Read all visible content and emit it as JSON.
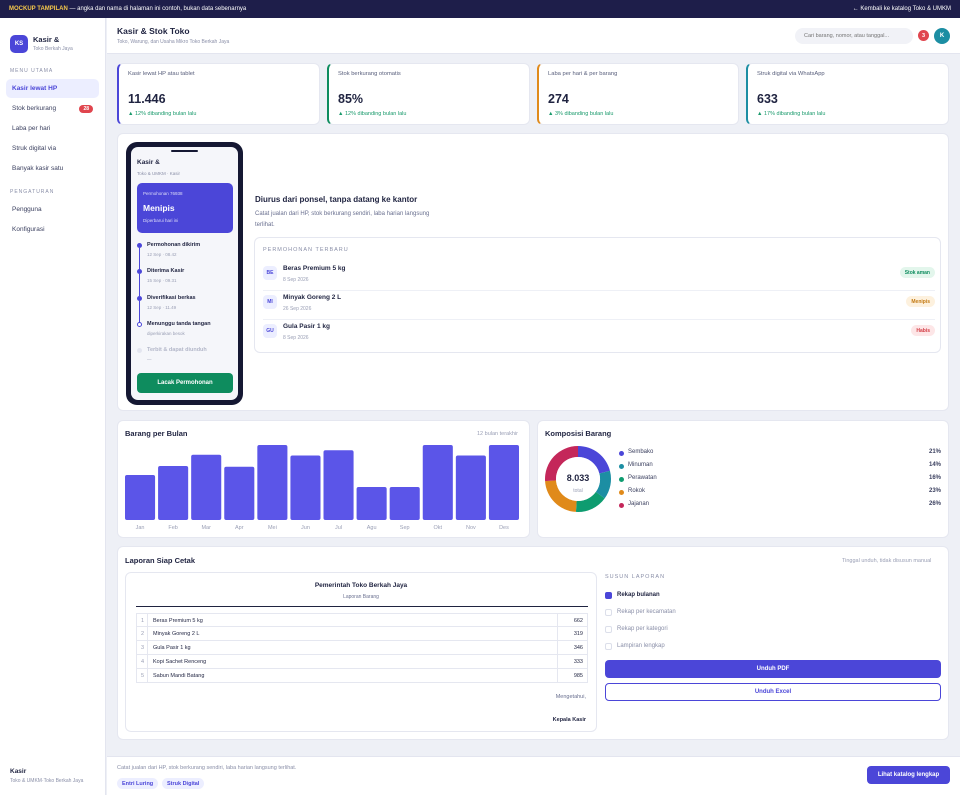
{
  "banner": {
    "tag": "MOCKUP TAMPILAN",
    "text": " — angka dan nama di halaman ini contoh, bukan data sebenarnya",
    "back_link": "← Kembali ke katalog Toko & UMKM"
  },
  "sidebar": {
    "logo": "KS",
    "title": "Kasir &",
    "subtitle": "Toko Berkah Jaya",
    "menu_heading": "MENU UTAMA",
    "items": [
      {
        "label": "Kasir lewat HP",
        "active": true
      },
      {
        "label": "Stok berkurang",
        "badge": "28"
      },
      {
        "label": "Laba per hari"
      },
      {
        "label": "Struk digital via"
      },
      {
        "label": "Banyak kasir satu"
      }
    ],
    "settings_heading": "PENGATURAN",
    "settings_items": [
      {
        "label": "Pengguna"
      },
      {
        "label": "Konfigurasi"
      }
    ],
    "footer_title": "Kasir",
    "footer_sub": "Toko & UMKM·Toko Berkah Jaya"
  },
  "header": {
    "title": "Kasir & Stok Toko",
    "subtitle": "Toko, Warung, dan Usaha Mikro Toko Berkah Jaya",
    "search_placeholder": "Cari barang, nomor, atau tanggal...",
    "notif_count": "3",
    "avatar": "K"
  },
  "stats": [
    {
      "label": "Kasir lewat HP atau tablet",
      "value": "11.446",
      "change": "▲ 12% dibanding bulan lalu",
      "color": "#4b46d8"
    },
    {
      "label": "Stok berkurang otomatis",
      "value": "85%",
      "change": "▲ 12% dibanding bulan lalu",
      "color": "#0e8c5e"
    },
    {
      "label": "Laba per hari & per barang",
      "value": "274",
      "change": "▲ 3% dibanding bulan lalu",
      "color": "#e08a1a"
    },
    {
      "label": "Struk digital via WhatsApp",
      "value": "633",
      "change": "▲ 17% dibanding bulan lalu",
      "color": "#1c8ea3"
    }
  ],
  "phone": {
    "title": "Kasir &",
    "subtitle": "Toko & UMKM · Kasir",
    "hero_id": "Permohonan 76938",
    "hero_status": "Menipis",
    "hero_note": "Diperbarui hari ini",
    "timeline": [
      {
        "label": "Permohonan dikirim",
        "time": "12 Sep · 08.42",
        "state": "done"
      },
      {
        "label": "Diterima Kasir",
        "time": "15 Sep · 09.31",
        "state": "done"
      },
      {
        "label": "Diverifikasi berkas",
        "time": "12 Sep · 11.49",
        "state": "done"
      },
      {
        "label": "Menunggu tanda tangan",
        "time": "diperkirakan besok",
        "state": "current"
      },
      {
        "label": "Terbit & dapat diunduh",
        "time": "—",
        "state": "pending"
      }
    ],
    "button": "Lacak Permohonan"
  },
  "intro": {
    "title": "Diurus dari ponsel, tanpa datang ke kantor",
    "text": "Catat jualan dari HP, stok berkurang sendiri, laba harian langsung terlihat."
  },
  "requests": {
    "heading": "PERMOHONAN TERBARU",
    "rows": [
      {
        "initials": "BE",
        "name": "Beras Premium 5 kg",
        "date": "8 Sep 2026",
        "status": "Stok aman",
        "bg": "#e3f6ec",
        "fg": "#0e8c5e"
      },
      {
        "initials": "MI",
        "name": "Minyak Goreng 2 L",
        "date": "26 Sep 2026",
        "status": "Menipis",
        "bg": "#fdf1de",
        "fg": "#c47a12"
      },
      {
        "initials": "GU",
        "name": "Gula Pasir 1 kg",
        "date": "8 Sep 2026",
        "status": "Habis",
        "bg": "#fde6e7",
        "fg": "#d33b44"
      }
    ]
  },
  "bar_section": {
    "title": "Barang per Bulan",
    "note": "12 bulan terakhir"
  },
  "chart_data": [
    {
      "type": "bar",
      "title": "Barang per Bulan",
      "categories": [
        "Jan",
        "Feb",
        "Mar",
        "Apr",
        "Mei",
        "Jun",
        "Jul",
        "Agu",
        "Sep",
        "Okt",
        "Nov",
        "Des"
      ],
      "values": [
        60,
        72,
        87,
        71,
        100,
        86,
        93,
        44,
        44,
        100,
        86,
        100
      ],
      "ylim": [
        0,
        100
      ],
      "color": "#5b55e8",
      "grid": false
    },
    {
      "type": "pie",
      "title": "Komposisi Barang",
      "center_value": "8.033",
      "center_label": "total",
      "categories": [
        "Sembako",
        "Minuman",
        "Perawatan",
        "Rokok",
        "Jajanan"
      ],
      "values": [
        21,
        14,
        16,
        23,
        26
      ],
      "labels": [
        "21%",
        "14%",
        "16%",
        "23%",
        "26%"
      ],
      "colors": [
        "#4b46d8",
        "#1c8ea3",
        "#0e9c70",
        "#e08a1a",
        "#c4275a"
      ]
    }
  ],
  "report": {
    "title": "Laporan Siap Cetak",
    "note": "Tinggal unduh, tidak disusun manual",
    "doc_title": "Pemerintah Toko Berkah Jaya",
    "doc_sub": "Laporan Barang",
    "rows": [
      {
        "no": "1",
        "name": "Beras Premium 5 kg",
        "value": "662"
      },
      {
        "no": "2",
        "name": "Minyak Goreng 2 L",
        "value": "319"
      },
      {
        "no": "3",
        "name": "Gula Pasir 1 kg",
        "value": "346"
      },
      {
        "no": "4",
        "name": "Kopi Sachet Renceng",
        "value": "333"
      },
      {
        "no": "5",
        "name": "Sabun Mandi Batang",
        "value": "985"
      }
    ],
    "ack": "Mengetahui,",
    "signer": "Kepala Kasir",
    "options_heading": "SUSUN LAPORAN",
    "options": [
      {
        "label": "Rekap bulanan",
        "checked": true
      },
      {
        "label": "Rekap per kecamatan",
        "checked": false
      },
      {
        "label": "Rekap per kategori",
        "checked": false
      },
      {
        "label": "Lampiran lengkap",
        "checked": false
      }
    ],
    "pdf_button": "Unduh PDF",
    "excel_button": "Unduh Excel"
  },
  "footer": {
    "text": "Catat jualan dari HP, stok berkurang sendiri, laba harian langsung terlihat.",
    "chips": [
      "Entri Luring",
      "Struk Digital"
    ],
    "button": "Lihat katalog lengkap"
  }
}
